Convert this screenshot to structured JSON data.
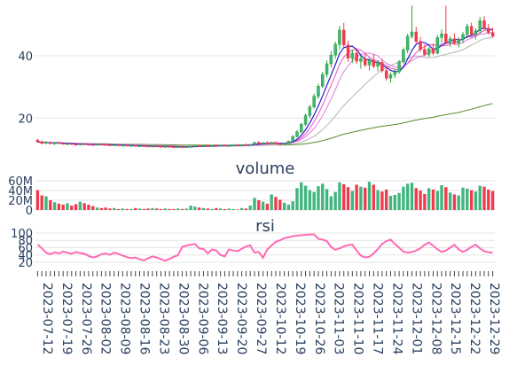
{
  "colors": {
    "up": "#2ca02c",
    "up_fill": "#3fb57f",
    "down": "#ef3b4c",
    "ma_blue": "#1f1fd6",
    "ma_magenta": "#e377e2",
    "ma_pink": "#ee4fb4",
    "ma_gray": "#b4b4b4",
    "ma_green": "#5a8a2a",
    "rsi": "#ff69b4",
    "grid": "#e5e5e5",
    "tick_text": "#2a3f5f"
  },
  "chart_data": [
    {
      "name": "price",
      "type": "candlestick",
      "yticks": [
        20,
        40
      ],
      "ylim": [
        9,
        55
      ],
      "grid": true,
      "candles": [
        [
          12.9,
          13.4,
          12.1,
          12.4
        ],
        [
          12.4,
          12.8,
          11.6,
          11.9
        ],
        [
          12.0,
          12.6,
          11.5,
          12.3
        ],
        [
          12.2,
          12.5,
          11.6,
          11.8
        ],
        [
          11.8,
          12.3,
          11.4,
          12.1
        ],
        [
          12.1,
          12.5,
          11.7,
          11.9
        ],
        [
          11.9,
          12.2,
          11.5,
          11.7
        ],
        [
          11.7,
          12.0,
          11.3,
          11.8
        ],
        [
          11.8,
          12.1,
          11.4,
          11.6
        ],
        [
          11.6,
          11.9,
          11.2,
          11.5
        ],
        [
          11.5,
          11.9,
          11.2,
          11.7
        ],
        [
          11.7,
          12.0,
          11.4,
          11.6
        ],
        [
          11.6,
          11.9,
          11.3,
          11.5
        ],
        [
          11.5,
          11.8,
          11.2,
          11.4
        ],
        [
          11.4,
          11.8,
          11.1,
          11.6
        ],
        [
          11.6,
          11.9,
          11.3,
          11.5
        ],
        [
          11.5,
          11.8,
          11.2,
          11.4
        ],
        [
          11.4,
          11.7,
          11.1,
          11.3
        ],
        [
          11.3,
          11.6,
          11.0,
          11.4
        ],
        [
          11.4,
          11.7,
          11.1,
          11.2
        ],
        [
          11.2,
          11.5,
          10.9,
          11.3
        ],
        [
          11.3,
          11.6,
          11.0,
          11.1
        ],
        [
          11.1,
          11.4,
          10.8,
          11.2
        ],
        [
          11.2,
          11.5,
          10.9,
          11.0
        ],
        [
          11.0,
          11.3,
          10.7,
          11.1
        ],
        [
          11.1,
          11.4,
          10.8,
          11.0
        ],
        [
          11.0,
          11.3,
          10.7,
          10.9
        ],
        [
          10.9,
          11.2,
          10.6,
          11.0
        ],
        [
          11.0,
          11.3,
          10.7,
          10.9
        ],
        [
          10.9,
          11.2,
          10.6,
          10.8
        ],
        [
          10.8,
          11.1,
          10.5,
          10.9
        ],
        [
          10.9,
          11.2,
          10.6,
          10.8
        ],
        [
          10.8,
          11.1,
          10.5,
          10.7
        ],
        [
          10.7,
          11.0,
          10.4,
          10.8
        ],
        [
          10.8,
          11.1,
          10.5,
          10.7
        ],
        [
          10.7,
          11.0,
          10.4,
          10.8
        ],
        [
          10.8,
          11.1,
          10.5,
          10.9
        ],
        [
          10.9,
          11.3,
          10.6,
          11.1
        ],
        [
          11.1,
          11.4,
          10.8,
          10.9
        ],
        [
          10.9,
          11.3,
          10.7,
          11.2
        ],
        [
          11.2,
          11.6,
          10.9,
          11.0
        ],
        [
          11.0,
          11.4,
          10.8,
          11.3
        ],
        [
          11.3,
          11.6,
          11.0,
          11.1
        ],
        [
          11.1,
          11.5,
          10.9,
          11.3
        ],
        [
          11.3,
          11.6,
          11.0,
          11.1
        ],
        [
          11.1,
          11.4,
          10.9,
          11.2
        ],
        [
          11.2,
          11.6,
          11.0,
          11.4
        ],
        [
          11.4,
          11.8,
          11.1,
          11.2
        ],
        [
          11.2,
          11.6,
          11.0,
          11.5
        ],
        [
          11.5,
          11.9,
          11.2,
          11.3
        ],
        [
          11.3,
          11.7,
          11.1,
          11.6
        ],
        [
          11.6,
          12.4,
          11.4,
          12.2
        ],
        [
          12.2,
          12.6,
          11.6,
          11.8
        ],
        [
          11.8,
          12.3,
          11.5,
          12.1
        ],
        [
          12.1,
          12.6,
          11.8,
          11.9
        ],
        [
          11.9,
          12.4,
          11.6,
          12.2
        ],
        [
          12.2,
          12.5,
          11.7,
          11.8
        ],
        [
          11.8,
          12.1,
          11.4,
          11.6
        ],
        [
          11.6,
          12.0,
          11.3,
          11.9
        ],
        [
          11.9,
          12.8,
          11.6,
          12.6
        ],
        [
          12.6,
          14.5,
          12.3,
          14.1
        ],
        [
          14.1,
          16.2,
          13.8,
          15.6
        ],
        [
          15.6,
          18.5,
          15.2,
          18.0
        ],
        [
          18.0,
          21.5,
          17.5,
          20.8
        ],
        [
          20.8,
          24.2,
          20.0,
          23.6
        ],
        [
          23.6,
          27.8,
          23.0,
          27.0
        ],
        [
          27.0,
          31.0,
          26.2,
          30.2
        ],
        [
          30.2,
          34.8,
          29.6,
          34.0
        ],
        [
          34.0,
          38.5,
          33.0,
          37.4
        ],
        [
          37.4,
          41.5,
          36.2,
          40.2
        ],
        [
          40.2,
          44.5,
          39.0,
          43.6
        ],
        [
          43.6,
          49.5,
          42.0,
          48.2
        ],
        [
          48.2,
          50.5,
          42.8,
          43.4
        ],
        [
          43.4,
          44.8,
          38.0,
          39.2
        ],
        [
          39.2,
          41.8,
          37.6,
          40.8
        ],
        [
          40.8,
          42.5,
          37.4,
          38.2
        ],
        [
          38.2,
          40.0,
          35.8,
          39.1
        ],
        [
          39.1,
          40.6,
          36.4,
          37.0
        ],
        [
          37.0,
          39.2,
          35.2,
          38.6
        ],
        [
          38.6,
          40.4,
          36.0,
          36.6
        ],
        [
          36.6,
          38.5,
          35.0,
          37.8
        ],
        [
          37.8,
          39.0,
          34.6,
          35.2
        ],
        [
          35.2,
          36.4,
          32.0,
          32.8
        ],
        [
          32.8,
          34.5,
          31.4,
          33.9
        ],
        [
          33.9,
          35.8,
          32.8,
          34.8
        ],
        [
          34.8,
          38.6,
          34.2,
          38.0
        ],
        [
          38.0,
          42.6,
          37.4,
          41.8
        ],
        [
          41.8,
          47.0,
          40.8,
          46.2
        ],
        [
          46.2,
          56.0,
          45.4,
          47.6
        ],
        [
          47.6,
          49.2,
          44.0,
          44.6
        ],
        [
          44.6,
          46.0,
          41.2,
          42.0
        ],
        [
          42.0,
          43.6,
          39.8,
          40.4
        ],
        [
          40.4,
          42.8,
          39.6,
          42.2
        ],
        [
          42.2,
          44.0,
          40.2,
          40.8
        ],
        [
          40.8,
          46.6,
          40.4,
          45.8
        ],
        [
          45.8,
          48.4,
          44.2,
          47.0
        ],
        [
          47.0,
          56.0,
          43.6,
          44.2
        ],
        [
          44.2,
          46.2,
          42.8,
          45.4
        ],
        [
          45.4,
          47.2,
          43.4,
          44.0
        ],
        [
          44.0,
          46.0,
          42.6,
          45.2
        ],
        [
          45.2,
          47.6,
          44.0,
          46.8
        ],
        [
          46.8,
          50.2,
          45.6,
          49.4
        ],
        [
          49.4,
          50.6,
          46.0,
          46.8
        ],
        [
          46.8,
          48.8,
          45.2,
          48.0
        ],
        [
          48.0,
          52.4,
          47.0,
          51.2
        ],
        [
          51.2,
          52.6,
          48.2,
          48.8
        ],
        [
          48.8,
          50.2,
          46.8,
          47.4
        ],
        [
          47.4,
          49.0,
          45.8,
          46.2
        ]
      ],
      "volume_M": [
        41,
        30,
        28,
        20,
        16,
        13,
        11,
        14,
        9,
        12,
        17,
        14,
        11,
        8,
        5,
        4,
        5,
        3,
        4,
        2,
        3,
        2,
        2,
        4,
        3,
        2,
        3,
        4,
        3,
        2,
        3,
        2,
        2,
        3,
        2,
        3,
        9,
        7,
        5,
        4,
        3,
        2,
        4,
        3,
        2,
        3,
        2,
        1,
        4,
        3,
        9,
        25,
        20,
        17,
        13,
        32,
        27,
        21,
        15,
        11,
        18,
        45,
        57,
        50,
        41,
        37,
        49,
        54,
        43,
        28,
        37,
        57,
        53,
        47,
        39,
        52,
        48,
        46,
        58,
        52,
        41,
        38,
        42,
        29,
        31,
        35,
        48,
        54,
        56,
        45,
        40,
        33,
        45,
        42,
        39,
        51,
        47,
        36,
        32,
        30,
        46,
        44,
        41,
        38,
        50,
        48,
        42,
        39
      ],
      "rsi": [
        69,
        58,
        46,
        42,
        47,
        44,
        49,
        46,
        43,
        48,
        45,
        43,
        37,
        33,
        36,
        42,
        44,
        40,
        46,
        43,
        38,
        34,
        31,
        33,
        28,
        25,
        31,
        36,
        33,
        28,
        24,
        29,
        35,
        39,
        62,
        65,
        68,
        70,
        58,
        56,
        44,
        55,
        52,
        40,
        36,
        55,
        52,
        50,
        57,
        63,
        66,
        46,
        48,
        32,
        55,
        66,
        76,
        80,
        86,
        88,
        91,
        93,
        94,
        95,
        96,
        96,
        84,
        82,
        78,
        62,
        54,
        58,
        63,
        67,
        68,
        52,
        38,
        33,
        35,
        44,
        56,
        70,
        78,
        82,
        70,
        60,
        49,
        46,
        48,
        52,
        58,
        68,
        74,
        65,
        55,
        48,
        52,
        60,
        68,
        55,
        48,
        54,
        62,
        68,
        58,
        50,
        47,
        46
      ]
    },
    {
      "name": "volume",
      "type": "bar",
      "title": "volume",
      "yticks": [
        "0",
        "20M",
        "40M",
        "60M"
      ],
      "ylim": [
        0,
        62
      ],
      "unit": "M"
    },
    {
      "name": "rsi",
      "type": "line",
      "title": "rsi",
      "yticks": [
        "20",
        "40",
        "60",
        "80",
        "100"
      ],
      "ylim": [
        15,
        100
      ]
    }
  ],
  "xaxis": {
    "labels": [
      "2023-07-12",
      "2023-07-19",
      "2023-07-26",
      "2023-08-02",
      "2023-08-09",
      "2023-08-16",
      "2023-08-23",
      "2023-08-30",
      "2023-09-06",
      "2023-09-13",
      "2023-09-20",
      "2023-09-27",
      "2023-10-12",
      "2023-10-19",
      "2023-10-26",
      "2023-11-03",
      "2023-11-10",
      "2023-11-17",
      "2023-11-24",
      "2023-12-01",
      "2023-12-08",
      "2023-12-15",
      "2023-12-22",
      "2023-12-29"
    ]
  }
}
